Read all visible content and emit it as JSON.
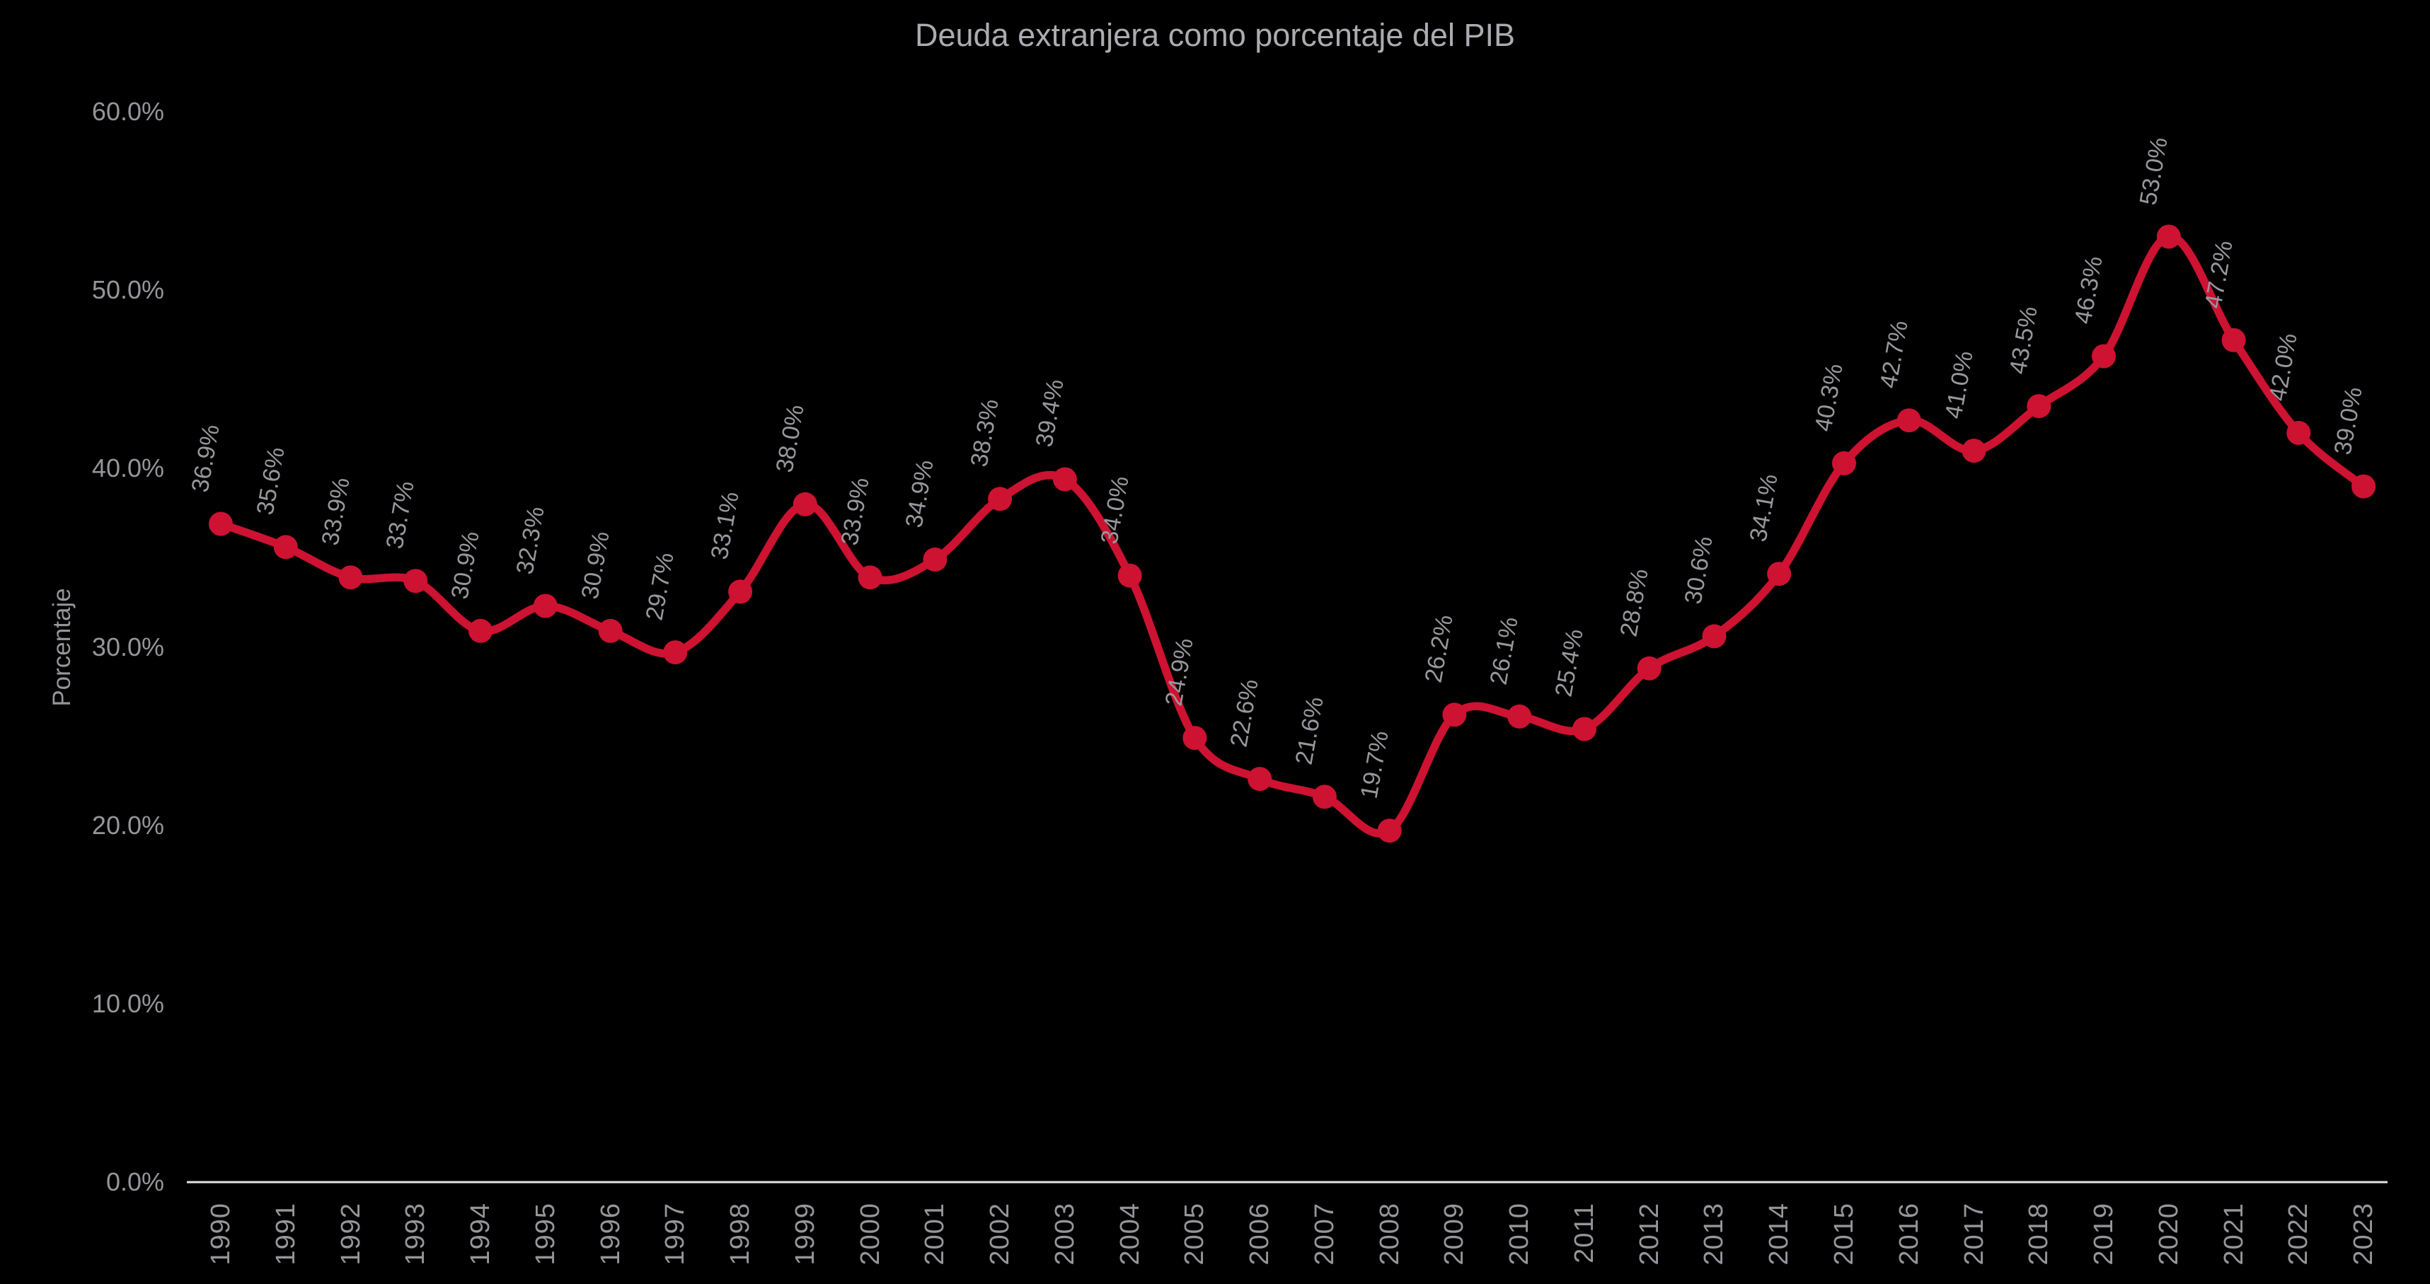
{
  "chart_data": {
    "type": "line",
    "title": "Deuda extranjera como porcentaje del PIB",
    "ylabel": "Porcentaje",
    "xlabel": "",
    "categories": [
      "1990",
      "1991",
      "1992",
      "1993",
      "1994",
      "1995",
      "1996",
      "1997",
      "1998",
      "1999",
      "2000",
      "2001",
      "2002",
      "2003",
      "2004",
      "2005",
      "2006",
      "2007",
      "2008",
      "2009",
      "2010",
      "2011",
      "2012",
      "2013",
      "2014",
      "2015",
      "2016",
      "2017",
      "2018",
      "2019",
      "2020",
      "2021",
      "2022",
      "2023"
    ],
    "values": [
      36.9,
      35.6,
      33.9,
      33.7,
      30.9,
      32.3,
      30.9,
      29.7,
      33.1,
      38.0,
      33.9,
      34.9,
      38.3,
      39.4,
      34.0,
      24.9,
      22.6,
      21.6,
      19.7,
      26.2,
      26.1,
      25.4,
      28.8,
      30.6,
      34.1,
      40.3,
      42.7,
      41.0,
      43.5,
      46.3,
      53.0,
      47.2,
      42.0,
      39.0
    ],
    "data_labels": [
      "36.9%",
      "35.6%",
      "33.9%",
      "33.7%",
      "30.9%",
      "32.3%",
      "30.9%",
      "29.7%",
      "33.1%",
      "38.0%",
      "33.9%",
      "34.9%",
      "38.3%",
      "39.4%",
      "34.0%",
      "24.9%",
      "22.6%",
      "21.6%",
      "19.7%",
      "26.2%",
      "26.1%",
      "25.4%",
      "28.8%",
      "30.6%",
      "34.1%",
      "40.3%",
      "42.7%",
      "41.0%",
      "43.5%",
      "46.3%",
      "53.0%",
      "47.2%",
      "42.0%",
      "39.0%"
    ],
    "ylim": [
      0,
      60
    ],
    "yticks": {
      "values": [
        0,
        10,
        20,
        30,
        40,
        50,
        60
      ],
      "labels": [
        "0.0%",
        "10.0%",
        "20.0%",
        "30.0%",
        "40.0%",
        "50.0%",
        "60.0%"
      ]
    },
    "grid": false,
    "legend": "none",
    "line_style": "smooth",
    "markers": "circle",
    "colors": {
      "line": "#CE1232",
      "marker": "#CE1232",
      "title": "#ABABB0",
      "axis_text": "#95959A",
      "data_label_text": "#97979C",
      "axis_line": "#E3E3E3",
      "background": "#000000"
    }
  }
}
